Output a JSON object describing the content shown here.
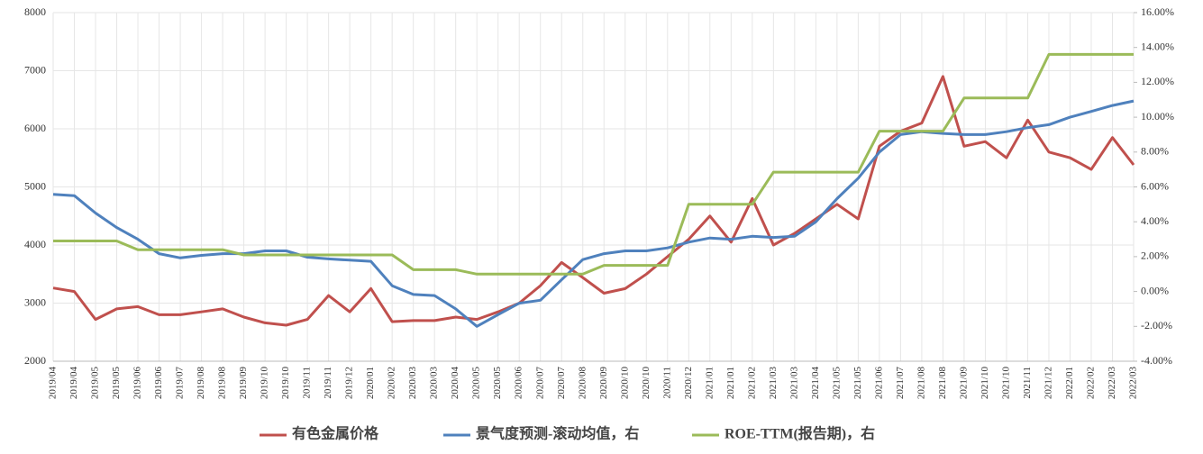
{
  "chart_data": {
    "type": "line",
    "categories": [
      "2019/04",
      "2019/04",
      "2019/05",
      "2019/05",
      "2019/06",
      "2019/06",
      "2019/07",
      "2019/08",
      "2019/08",
      "2019/09",
      "2019/10",
      "2019/10",
      "2019/11",
      "2019/11",
      "2019/12",
      "2020/01",
      "2020/02",
      "2020/03",
      "2020/03",
      "2020/04",
      "2020/05",
      "2020/05",
      "2020/06",
      "2020/07",
      "2020/07",
      "2020/08",
      "2020/09",
      "2020/10",
      "2020/10",
      "2020/11",
      "2020/12",
      "2021/01",
      "2021/01",
      "2021/02",
      "2021/03",
      "2021/03",
      "2021/04",
      "2021/05",
      "2021/05",
      "2021/06",
      "2021/07",
      "2021/08",
      "2021/08",
      "2021/09",
      "2021/10",
      "2021/10",
      "2021/11",
      "2021/12",
      "2022/01",
      "2022/02",
      "2022/03",
      "2022/03"
    ],
    "series": [
      {
        "name": "有色金属价格",
        "color": "#c0504d",
        "values": [
          3260,
          3200,
          2720,
          2900,
          2940,
          2800,
          2800,
          2850,
          2900,
          2760,
          2660,
          2620,
          2720,
          3130,
          2850,
          3250,
          2680,
          2700,
          2700,
          2760,
          2720,
          2850,
          3000,
          3300,
          3700,
          3440,
          3170,
          3250,
          3500,
          3800,
          4100,
          4500,
          4050,
          4800,
          4000,
          4200,
          4450,
          4700,
          4450,
          5700,
          5960,
          6100,
          6900,
          5700,
          5780,
          5500,
          6150,
          5600,
          5500,
          5300,
          5850,
          5380
        ]
      },
      {
        "name": "景气度预测-滚动均值，右",
        "color": "#4f81bd",
        "axis": "y2",
        "values": [
          5.57,
          5.5,
          4.5,
          3.67,
          3.0,
          2.17,
          1.93,
          2.07,
          2.17,
          2.17,
          2.33,
          2.33,
          1.97,
          1.87,
          1.8,
          1.73,
          0.33,
          -0.17,
          -0.23,
          -1.0,
          -2.0,
          -1.33,
          -0.67,
          -0.5,
          0.67,
          1.83,
          2.17,
          2.33,
          2.33,
          2.5,
          2.83,
          3.07,
          3.0,
          3.17,
          3.1,
          3.17,
          4.0,
          5.33,
          6.5,
          8.0,
          9.0,
          9.17,
          9.07,
          9.0,
          9.0,
          9.17,
          9.4,
          9.57,
          10.0,
          10.33,
          10.67,
          10.93
        ]
      },
      {
        "name": "ROE-TTM(报告期)，右",
        "color": "#9bbb59",
        "axis": "y2",
        "values": [
          2.9,
          2.9,
          2.9,
          2.9,
          2.4,
          2.4,
          2.4,
          2.4,
          2.4,
          2.1,
          2.1,
          2.1,
          2.1,
          2.1,
          2.1,
          2.1,
          2.1,
          1.25,
          1.25,
          1.25,
          1.0,
          1.0,
          1.0,
          1.0,
          1.0,
          1.0,
          1.5,
          1.5,
          1.5,
          1.5,
          5.0,
          5.0,
          5.0,
          5.0,
          6.85,
          6.85,
          6.85,
          6.85,
          6.85,
          9.2,
          9.2,
          9.2,
          9.2,
          11.1,
          11.1,
          11.1,
          11.1,
          13.6,
          13.6,
          13.6,
          13.6,
          13.6
        ]
      }
    ],
    "ylim": [
      2000,
      8000
    ],
    "yticks": [
      2000,
      3000,
      4000,
      5000,
      6000,
      7000,
      8000
    ],
    "y2lim": [
      -4,
      16
    ],
    "y2ticks": [
      {
        "value": -4,
        "label": "-4.00%"
      },
      {
        "value": -2,
        "label": "-2.00%"
      },
      {
        "value": 0,
        "label": "0.00%"
      },
      {
        "value": 2,
        "label": "2.00%"
      },
      {
        "value": 4,
        "label": "4.00%"
      },
      {
        "value": 6,
        "label": "6.00%"
      },
      {
        "value": 8,
        "label": "8.00%"
      },
      {
        "value": 10,
        "label": "10.00%"
      },
      {
        "value": 12,
        "label": "12.00%"
      },
      {
        "value": 14,
        "label": "14.00%"
      },
      {
        "value": 16,
        "label": "16.00%"
      }
    ],
    "grid": true,
    "legend": "bottom"
  }
}
